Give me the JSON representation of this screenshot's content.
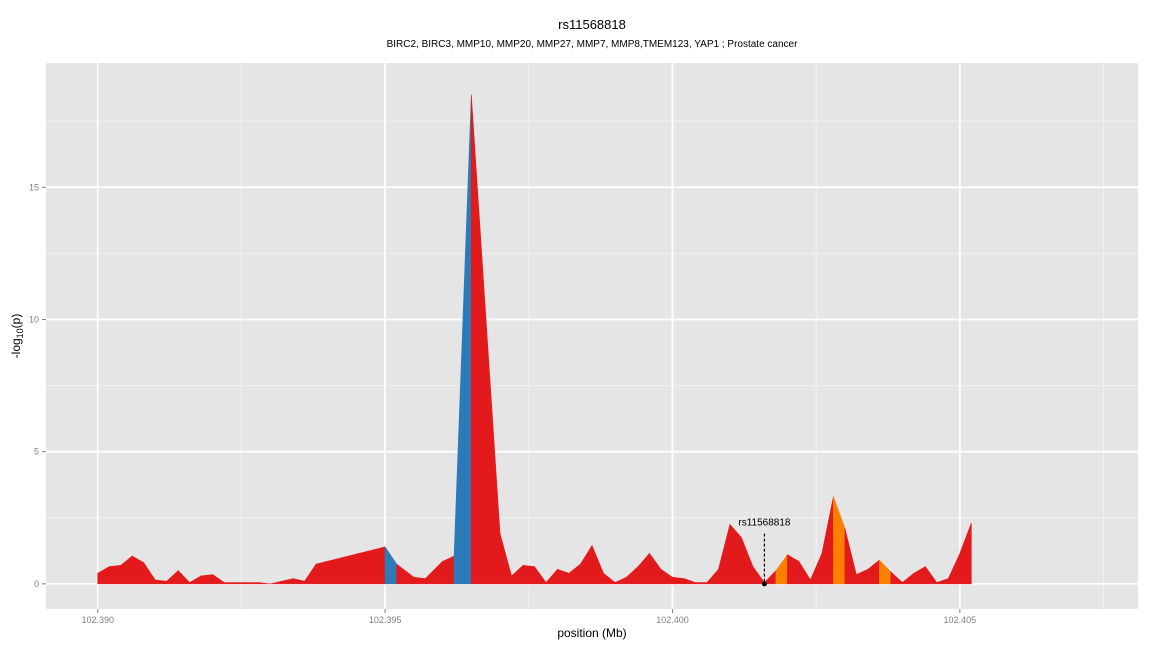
{
  "chart_data": {
    "type": "area",
    "title": "rs11568818",
    "subtitle": "BIRC2, BIRC3, MMP10, MMP20, MMP27, MMP7, MMP8,TMEM123, YAP1 ; Prostate cancer",
    "xlabel": "position (Mb)",
    "ylabel_prefix": "-log",
    "ylabel_sub": "10",
    "ylabel_suffix": "(p)",
    "xlim": [
      102.3891,
      102.4081
    ],
    "ylim": [
      -0.95,
      19.7
    ],
    "x_ticks": [
      {
        "value": 102.39,
        "label": "102.390"
      },
      {
        "value": 102.395,
        "label": "102.395"
      },
      {
        "value": 102.4,
        "label": "102.400"
      },
      {
        "value": 102.405,
        "label": "102.405"
      }
    ],
    "y_ticks": [
      {
        "value": 0,
        "label": "0"
      },
      {
        "value": 5,
        "label": "5"
      },
      {
        "value": 10,
        "label": "10"
      },
      {
        "value": 15,
        "label": "15"
      }
    ],
    "grid": true,
    "colors": {
      "panel": "#e5e5e5",
      "grid_major": "#ffffff",
      "grid_minor": "#f2f2f2",
      "red": "#e31a1c",
      "blue": "#2b7bb9",
      "orange": "#ff7f00",
      "axis_text": "#7f7f7f",
      "text": "#000000"
    },
    "points": [
      [
        102.39,
        0.4,
        "red"
      ],
      [
        102.3902,
        0.65,
        "red"
      ],
      [
        102.3904,
        0.7,
        "red"
      ],
      [
        102.3906,
        1.05,
        "red"
      ],
      [
        102.3908,
        0.8,
        "red"
      ],
      [
        102.391,
        0.15,
        "red"
      ],
      [
        102.3912,
        0.1,
        "red"
      ],
      [
        102.3914,
        0.5,
        "red"
      ],
      [
        102.3916,
        0.05,
        "red"
      ],
      [
        102.3918,
        0.3,
        "red"
      ],
      [
        102.392,
        0.35,
        "red"
      ],
      [
        102.3922,
        0.05,
        "red"
      ],
      [
        102.3924,
        0.05,
        "red"
      ],
      [
        102.3928,
        0.05,
        "red"
      ],
      [
        102.393,
        0.0,
        "red"
      ],
      [
        102.3932,
        0.1,
        "red"
      ],
      [
        102.3934,
        0.2,
        "red"
      ],
      [
        102.3936,
        0.1,
        "red"
      ],
      [
        102.3938,
        0.75,
        "red"
      ],
      [
        102.395,
        1.4,
        "red"
      ],
      [
        102.3952,
        0.75,
        "blue"
      ],
      [
        102.3955,
        0.25,
        "red"
      ],
      [
        102.3957,
        0.2,
        "red"
      ],
      [
        102.396,
        0.85,
        "red"
      ],
      [
        102.3962,
        1.05,
        "red"
      ],
      [
        102.3965,
        18.5,
        "blue"
      ],
      [
        102.397,
        1.9,
        "red"
      ],
      [
        102.3972,
        0.3,
        "red"
      ],
      [
        102.3974,
        0.7,
        "red"
      ],
      [
        102.3976,
        0.65,
        "red"
      ],
      [
        102.3978,
        0.05,
        "red"
      ],
      [
        102.398,
        0.55,
        "red"
      ],
      [
        102.3982,
        0.4,
        "red"
      ],
      [
        102.3984,
        0.75,
        "red"
      ],
      [
        102.3986,
        1.45,
        "red"
      ],
      [
        102.3988,
        0.4,
        "red"
      ],
      [
        102.399,
        0.05,
        "red"
      ],
      [
        102.3992,
        0.25,
        "red"
      ],
      [
        102.3994,
        0.65,
        "red"
      ],
      [
        102.3996,
        1.15,
        "red"
      ],
      [
        102.3998,
        0.55,
        "red"
      ],
      [
        102.4,
        0.25,
        "red"
      ],
      [
        102.4002,
        0.2,
        "red"
      ],
      [
        102.4004,
        0.05,
        "red"
      ],
      [
        102.4006,
        0.05,
        "red"
      ],
      [
        102.4008,
        0.55,
        "red"
      ],
      [
        102.401,
        2.25,
        "red"
      ],
      [
        102.4012,
        1.75,
        "red"
      ],
      [
        102.4014,
        0.65,
        "red"
      ],
      [
        102.4016,
        0.05,
        "red"
      ],
      [
        102.4018,
        0.5,
        "red"
      ],
      [
        102.402,
        1.1,
        "orange"
      ],
      [
        102.4022,
        0.85,
        "red"
      ],
      [
        102.4024,
        0.15,
        "red"
      ],
      [
        102.4026,
        1.15,
        "red"
      ],
      [
        102.4028,
        3.3,
        "red"
      ],
      [
        102.403,
        2.1,
        "orange"
      ],
      [
        102.4032,
        0.35,
        "red"
      ],
      [
        102.4034,
        0.55,
        "red"
      ],
      [
        102.4036,
        0.9,
        "red"
      ],
      [
        102.4038,
        0.45,
        "orange"
      ],
      [
        102.404,
        0.05,
        "red"
      ],
      [
        102.4042,
        0.4,
        "red"
      ],
      [
        102.4044,
        0.65,
        "red"
      ],
      [
        102.4046,
        0.05,
        "red"
      ],
      [
        102.4048,
        0.2,
        "red"
      ],
      [
        102.405,
        1.15,
        "red"
      ],
      [
        102.4052,
        2.3,
        "red"
      ]
    ],
    "annotation": {
      "label": "rs11568818",
      "x": 102.4016,
      "y": 0.0,
      "line_top": 1.9
    }
  }
}
